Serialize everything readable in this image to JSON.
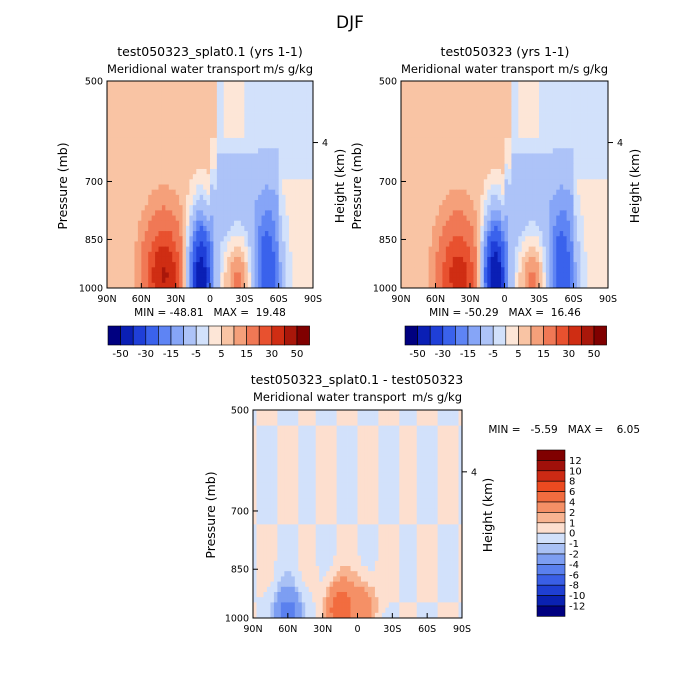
{
  "figure": {
    "title": "DJF",
    "panels": [
      {
        "title": "test050323_splat0.1 (yrs 1-1)",
        "subtitle_left": "Meridional water transport",
        "subtitle_right": "m/s g/kg",
        "min_max": "MIN = -48.81   MAX =  19.48",
        "ylabel": "Pressure (mb)",
        "ylabel_right": "Height (km)"
      },
      {
        "title": "test050323 (yrs 1-1)",
        "subtitle_left": "Meridional water transport",
        "subtitle_right": "m/s g/kg",
        "min_max": "MIN = -50.29   MAX =  16.46",
        "ylabel": "Pressure (mb)",
        "ylabel_right": "Height (km)"
      },
      {
        "title": "test050323_splat0.1 - test050323",
        "subtitle_left": "Meridional water transport",
        "subtitle_right": "m/s g/kg",
        "min_max": "MIN =   -5.59   MAX =    6.05",
        "ylabel": "Pressure (mb)",
        "ylabel_right": "Height (km)"
      }
    ]
  },
  "chart_data": [
    {
      "type": "heatmap",
      "title": "test050323_splat0.1 (yrs 1-1)",
      "subtitle": "Meridional water transport m/s g/kg",
      "xlabel": "",
      "ylabel": "Pressure (mb)",
      "ylabel_right": "Height (km)",
      "x_ticks": [
        "90N",
        "60N",
        "30N",
        "0",
        "30S",
        "60S",
        "90S"
      ],
      "x_range": [
        90,
        -90
      ],
      "y_ticks": [
        "500",
        "700",
        "850",
        "1000"
      ],
      "y_range": [
        1000,
        500
      ],
      "y_scale": "log",
      "right_ticks": [
        "4"
      ],
      "min": -48.81,
      "max": 19.48,
      "contour_levels": [
        -50,
        -40,
        -30,
        -20,
        -15,
        -10,
        -5,
        -2.5,
        0,
        2.5,
        5,
        10,
        15,
        20,
        30,
        40,
        50
      ],
      "colorbar_labels": [
        "-50",
        "-30",
        "-15",
        "-5",
        "5",
        "15",
        "30",
        "50"
      ],
      "features": [
        {
          "sign": "positive",
          "lat": 40,
          "p": 960,
          "peak": 19.48
        },
        {
          "sign": "negative",
          "lat": 8,
          "p": 960,
          "peak": -48.81
        },
        {
          "sign": "positive",
          "lat": -25,
          "p": 980,
          "peak": 8
        },
        {
          "sign": "negative",
          "lat": -50,
          "p": 960,
          "peak": -25
        }
      ]
    },
    {
      "type": "heatmap",
      "title": "test050323 (yrs 1-1)",
      "subtitle": "Meridional water transport m/s g/kg",
      "xlabel": "",
      "ylabel": "Pressure (mb)",
      "ylabel_right": "Height (km)",
      "x_ticks": [
        "90N",
        "60N",
        "30N",
        "0",
        "30S",
        "60S",
        "90S"
      ],
      "x_range": [
        90,
        -90
      ],
      "y_ticks": [
        "500",
        "700",
        "850",
        "1000"
      ],
      "y_range": [
        1000,
        500
      ],
      "y_scale": "log",
      "right_ticks": [
        "4"
      ],
      "min": -50.29,
      "max": 16.46,
      "contour_levels": [
        -50,
        -40,
        -30,
        -20,
        -15,
        -10,
        -5,
        -2.5,
        0,
        2.5,
        5,
        10,
        15,
        20,
        30,
        40,
        50
      ],
      "colorbar_labels": [
        "-50",
        "-30",
        "-15",
        "-5",
        "5",
        "15",
        "30",
        "50"
      ],
      "features": [
        {
          "sign": "positive",
          "lat": 40,
          "p": 960,
          "peak": 16.46
        },
        {
          "sign": "negative",
          "lat": 8,
          "p": 960,
          "peak": -50.29
        },
        {
          "sign": "positive",
          "lat": -25,
          "p": 980,
          "peak": 8
        },
        {
          "sign": "negative",
          "lat": -50,
          "p": 960,
          "peak": -25
        }
      ]
    },
    {
      "type": "heatmap",
      "title": "test050323_splat0.1 - test050323",
      "subtitle": "Meridional water transport m/s g/kg",
      "xlabel": "",
      "ylabel": "Pressure (mb)",
      "ylabel_right": "Height (km)",
      "x_ticks": [
        "90N",
        "60N",
        "30N",
        "0",
        "30S",
        "60S",
        "90S"
      ],
      "x_range": [
        90,
        -90
      ],
      "y_ticks": [
        "500",
        "700",
        "850",
        "1000"
      ],
      "y_range": [
        1000,
        500
      ],
      "y_scale": "log",
      "right_ticks": [
        "4"
      ],
      "min": -5.59,
      "max": 6.05,
      "contour_levels": [
        -12,
        -10,
        -8,
        -6,
        -4,
        -2,
        -1,
        0,
        1,
        2,
        4,
        6,
        8,
        10,
        12
      ],
      "colorbar_labels": [
        "12",
        "10",
        "8",
        "6",
        "4",
        "2",
        "1",
        "0",
        "-1",
        "-2",
        "-4",
        "-6",
        "-8",
        "-10",
        "-12"
      ],
      "features": [
        {
          "sign": "positive",
          "lat": 15,
          "p": 970,
          "peak": 6.05
        },
        {
          "sign": "negative",
          "lat": 60,
          "p": 990,
          "peak": -5.59
        },
        {
          "sign": "positive",
          "lat": -5,
          "p": 960,
          "peak": 3
        }
      ]
    }
  ],
  "colors": {
    "diverging_12": [
      "#000080",
      "#0a1fb5",
      "#1f3fd8",
      "#3a62ec",
      "#5e84f4",
      "#86a5f7",
      "#adc3f8",
      "#d2e1fb",
      "#fde6d7",
      "#f9c4a4",
      "#f5a07a",
      "#f07855",
      "#e8512f",
      "#cf2d13",
      "#a9170a",
      "#800000"
    ],
    "diff_levels": [
      "#800000",
      "#a0100a",
      "#cd2a14",
      "#ec4a20",
      "#f26c3f",
      "#f59066",
      "#f8b491",
      "#fddfcf",
      "#d2e1fb",
      "#a9c1f5",
      "#7d9ef2",
      "#5a80ee",
      "#3a5fe6",
      "#1f3fd3",
      "#0a21b2",
      "#000080"
    ]
  }
}
